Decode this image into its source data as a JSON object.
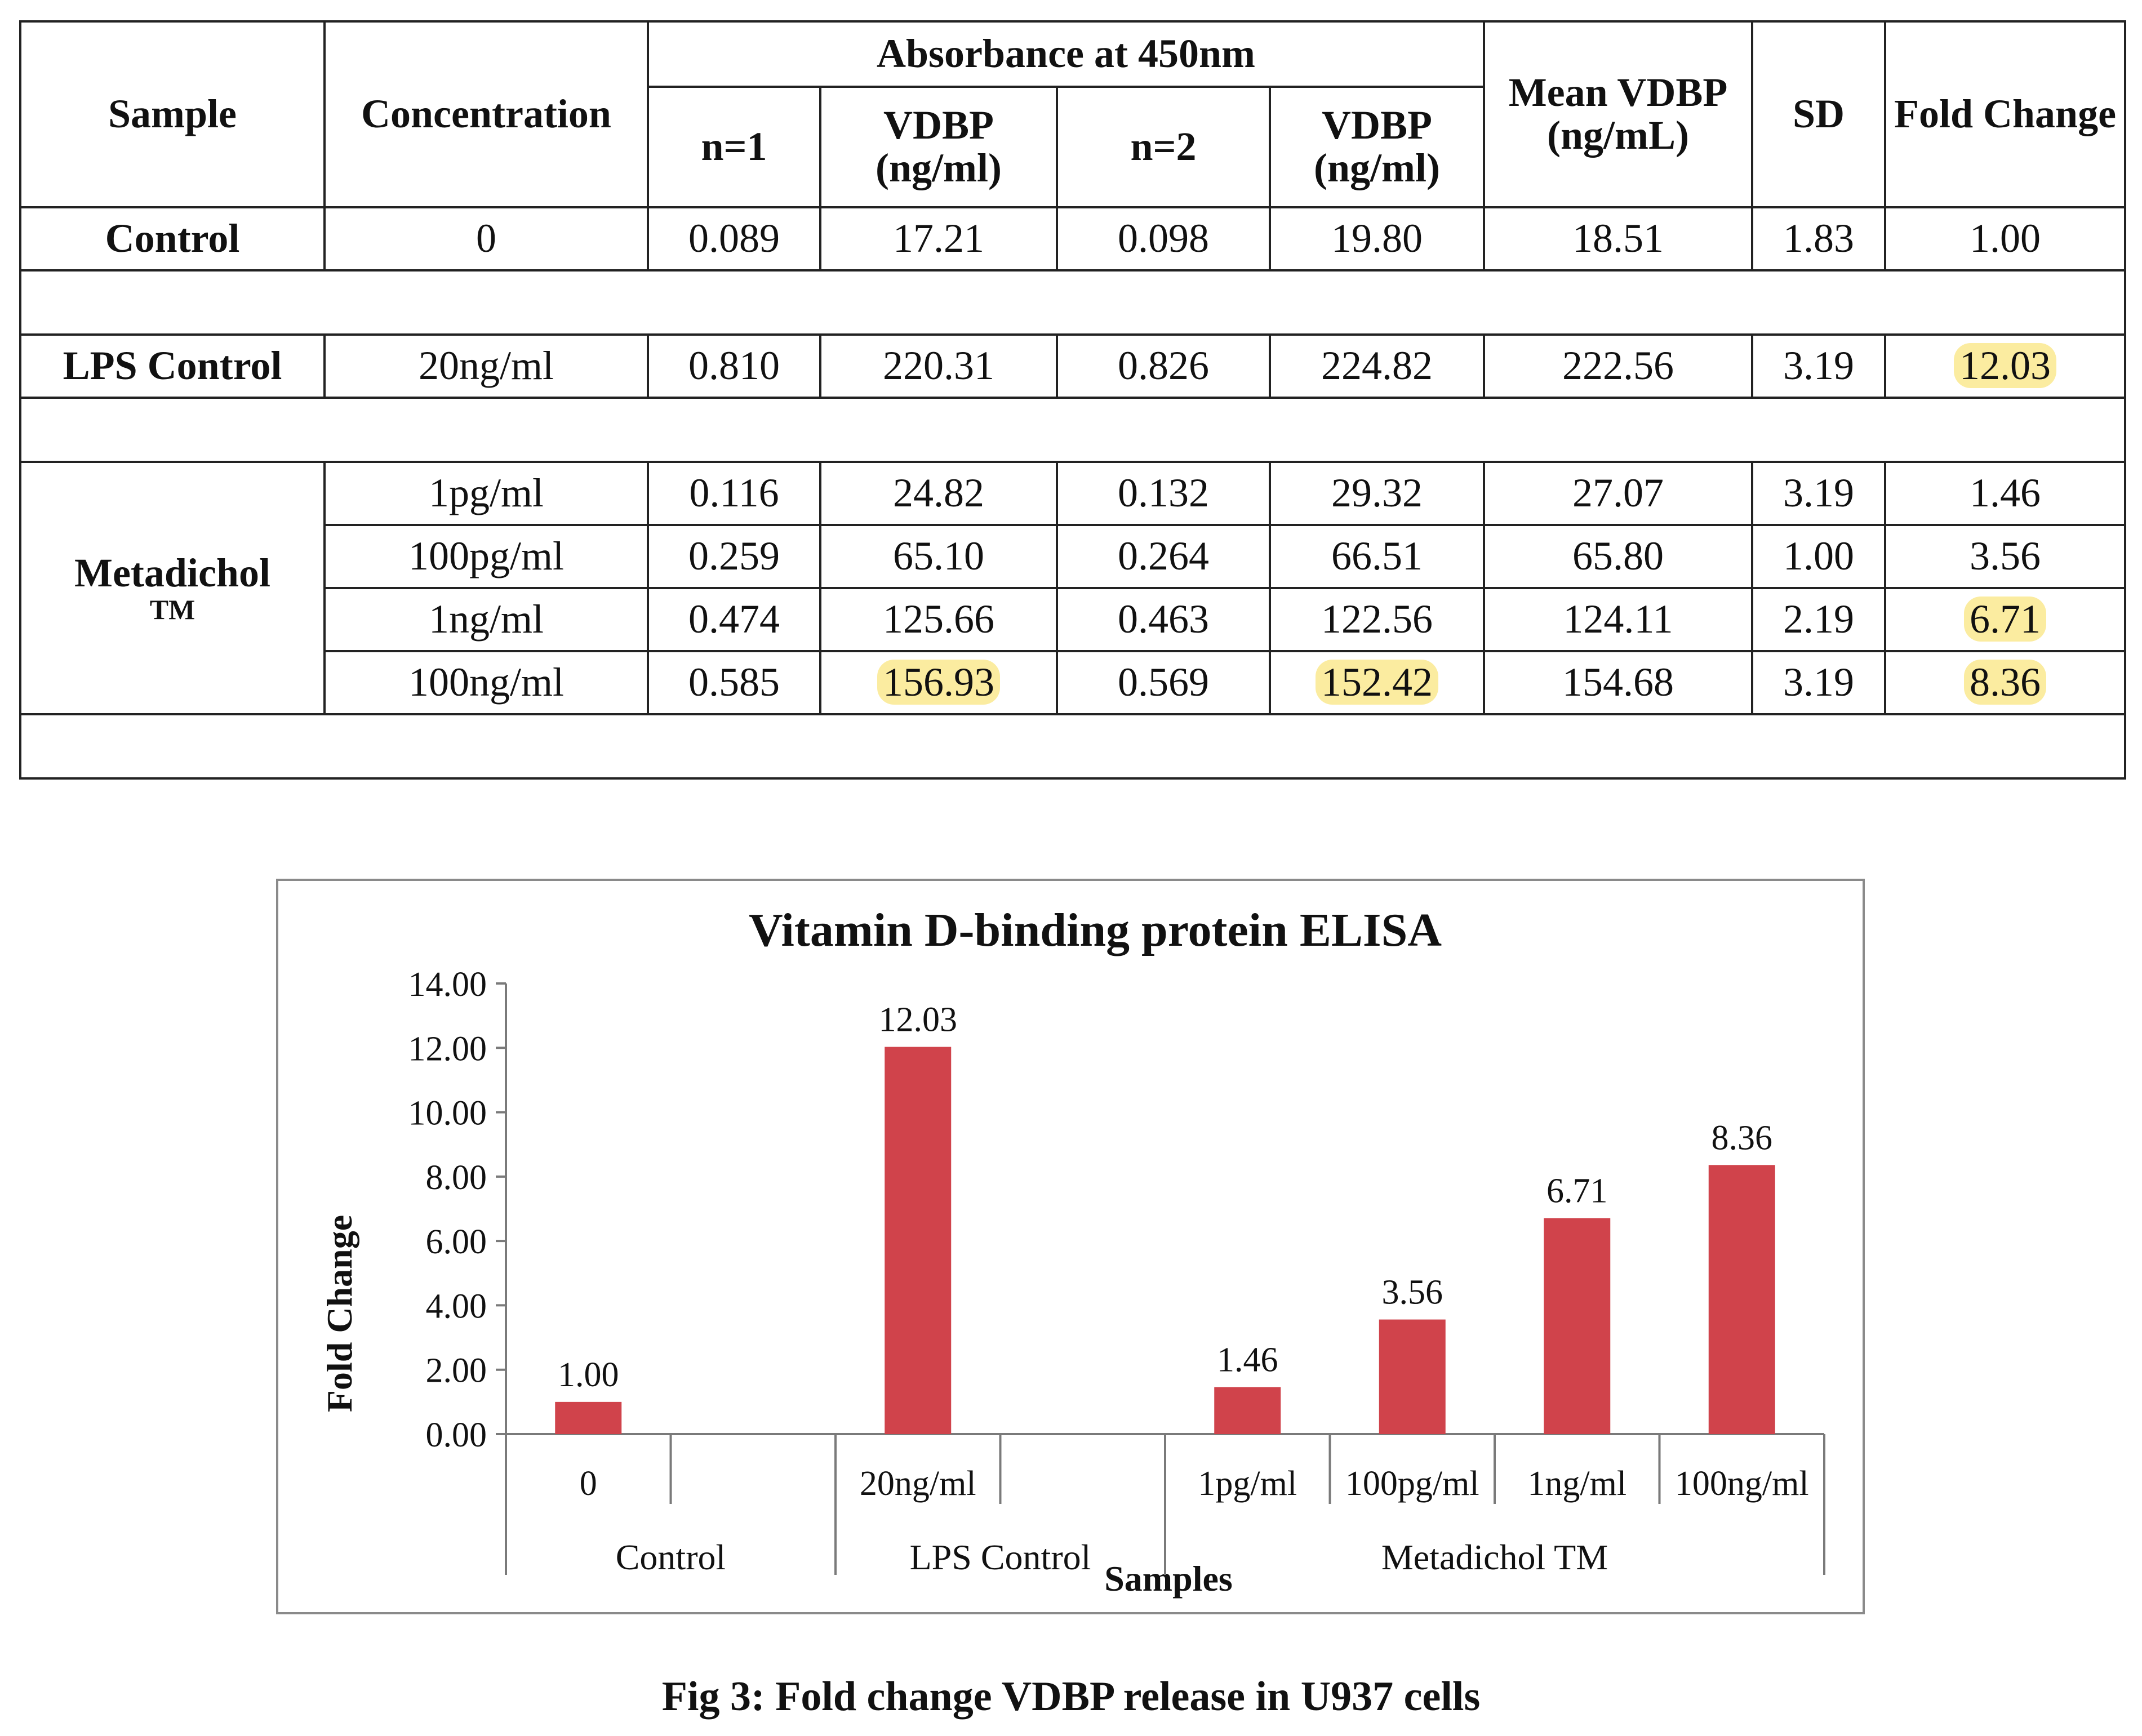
{
  "table": {
    "headers": {
      "sample": "Sample",
      "concentration": "Concentration",
      "absorbance_group": "Absorbance at 450nm",
      "n1": "n=1",
      "vdbp1": "VDBP (ng/ml)",
      "n2": "n=2",
      "vdbp2": "VDBP (ng/ml)",
      "mean": "Mean VDBP (ng/mL)",
      "sd": "SD",
      "fold": "Fold Change"
    },
    "control": {
      "sample": "Control",
      "row": {
        "conc": "0",
        "n1": "0.089",
        "v1": "17.21",
        "n2": "0.098",
        "v2": "19.80",
        "mean": "18.51",
        "sd": "1.83",
        "fold": "1.00"
      }
    },
    "lps": {
      "sample": "LPS Control",
      "row": {
        "conc": "20ng/ml",
        "n1": "0.810",
        "v1": "220.31",
        "n2": "0.826",
        "v2": "224.82",
        "mean": "222.56",
        "sd": "3.19",
        "fold": "12.03"
      }
    },
    "metadichol": {
      "sample": "Metadichol",
      "sample_tm": "TM",
      "rows": [
        {
          "conc": "1pg/ml",
          "n1": "0.116",
          "v1": "24.82",
          "n2": "0.132",
          "v2": "29.32",
          "mean": "27.07",
          "sd": "3.19",
          "fold": "1.46"
        },
        {
          "conc": "100pg/ml",
          "n1": "0.259",
          "v1": "65.10",
          "n2": "0.264",
          "v2": "66.51",
          "mean": "65.80",
          "sd": "1.00",
          "fold": "3.56"
        },
        {
          "conc": "1ng/ml",
          "n1": "0.474",
          "v1": "125.66",
          "n2": "0.463",
          "v2": "122.56",
          "mean": "124.11",
          "sd": "2.19",
          "fold": "6.71"
        },
        {
          "conc": "100ng/ml",
          "n1": "0.585",
          "v1": "156.93",
          "n2": "0.569",
          "v2": "152.42",
          "mean": "154.68",
          "sd": "3.19",
          "fold": "8.36"
        }
      ]
    }
  },
  "chart_data": {
    "type": "bar",
    "title": "Vitamin D-binding protein ELISA",
    "xlabel": "Samples",
    "ylabel": "Fold Change",
    "ylim": [
      0,
      14
    ],
    "yticks": [
      "0.00",
      "2.00",
      "4.00",
      "6.00",
      "8.00",
      "10.00",
      "12.00",
      "14.00"
    ],
    "bar_color": "#d0434b",
    "categories": [
      "0",
      "",
      "20ng/ml",
      "",
      "1pg/ml",
      "100pg/ml",
      "1ng/ml",
      "100ng/ml"
    ],
    "groups": [
      {
        "label": "Control",
        "span": 2
      },
      {
        "label": "LPS Control",
        "span": 2
      },
      {
        "label": "Metadichol TM",
        "span": 4
      }
    ],
    "values": [
      1.0,
      null,
      12.03,
      null,
      1.46,
      3.56,
      6.71,
      8.36
    ],
    "data_labels": [
      "1.00",
      "",
      "12.03",
      "",
      "1.46",
      "3.56",
      "6.71",
      "8.36"
    ]
  },
  "caption": "Fig 3: Fold change VDBP release in U937 cells"
}
